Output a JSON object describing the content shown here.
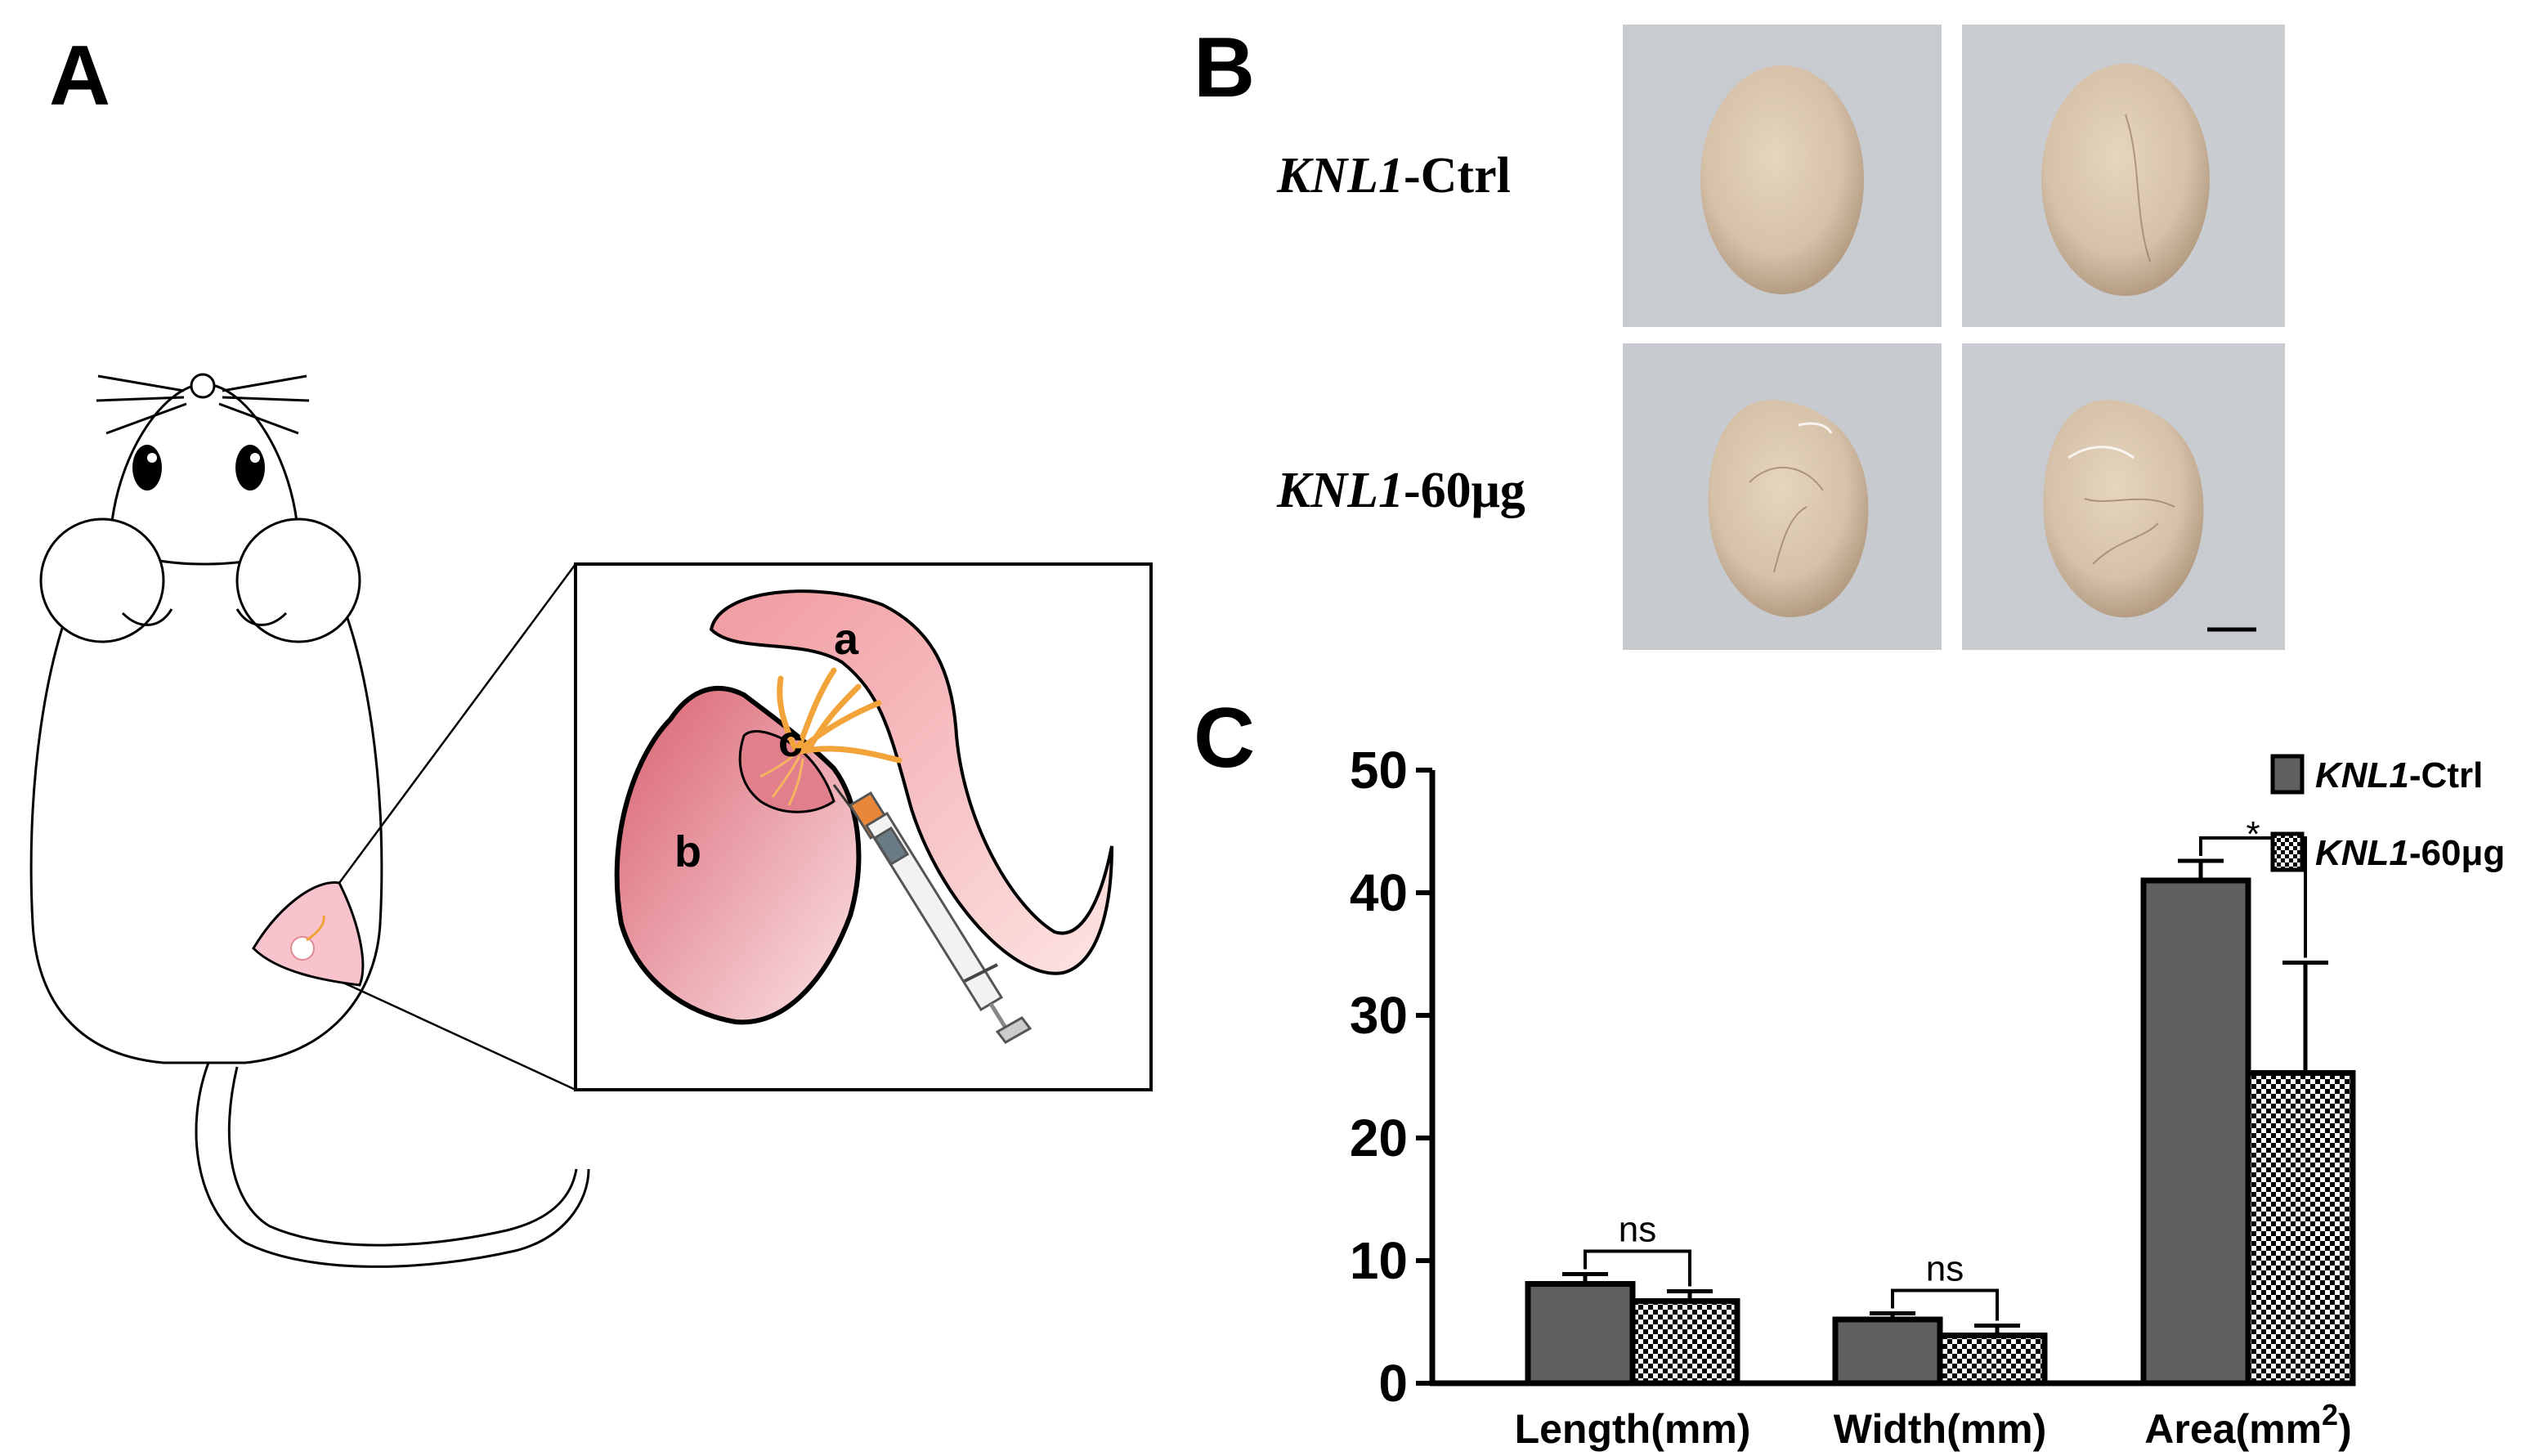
{
  "panels": {
    "a": "A",
    "b": "B",
    "c": "C"
  },
  "panel_a": {
    "inset_labels": {
      "a": "a",
      "b": "b",
      "c": "c"
    }
  },
  "panel_b": {
    "row1_prefix": "KNL1",
    "row1_suffix": "-Ctrl",
    "row2_prefix": "KNL1",
    "row2_suffix": "-60μg"
  },
  "colors": {
    "ctrl_bar": "#5f5f5f",
    "treat_pattern": "#000000",
    "organ_fill": "#d8c4ae",
    "photo_bg": "#c9cbd0",
    "tissue_pink": "#e89aa6",
    "vessel_orange": "#f2a33a"
  },
  "chart_data": {
    "type": "bar",
    "categories": [
      "Length(mm)",
      "Width(mm)",
      "Area(mm2)"
    ],
    "category_display": [
      {
        "main": "Length(mm)",
        "sup": ""
      },
      {
        "main": "Width(mm)",
        "sup": ""
      },
      {
        "main": "Area(mm",
        "sup": "2",
        "tail": ")"
      }
    ],
    "series": [
      {
        "name_prefix": "KNL1",
        "name_suffix": "-Ctrl",
        "values": [
          8.1,
          5.2,
          41.0
        ],
        "errors": [
          0.8,
          0.5,
          1.6
        ]
      },
      {
        "name_prefix": "KNL1",
        "name_suffix": "-60μg",
        "values": [
          6.7,
          3.9,
          25.3
        ],
        "errors": [
          0.8,
          0.8,
          9.0
        ]
      }
    ],
    "significance": [
      "ns",
      "ns",
      "*"
    ],
    "yticks": [
      "0",
      "10",
      "20",
      "30",
      "40",
      "50"
    ],
    "ylim": [
      0,
      50
    ],
    "legend_position": "top-right"
  }
}
